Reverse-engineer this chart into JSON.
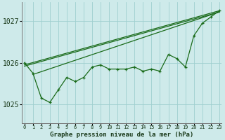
{
  "title": "Graphe pression niveau de la mer (hPa)",
  "xlabel_hours": [
    0,
    1,
    2,
    3,
    4,
    5,
    6,
    7,
    8,
    9,
    10,
    11,
    12,
    13,
    14,
    15,
    16,
    17,
    18,
    19,
    20,
    21,
    22,
    23
  ],
  "ylim": [
    1024.55,
    1027.45
  ],
  "yticks": [
    1025,
    1026,
    1027
  ],
  "bg_color": "#ceeaea",
  "grid_color": "#9fcfcf",
  "line_color": "#1a6b1a",
  "zigzag": [
    1026.0,
    1025.75,
    1025.15,
    1025.05,
    1025.35,
    1025.65,
    1025.55,
    1025.65,
    1025.9,
    1025.95,
    1025.85,
    1025.85,
    1025.85,
    1025.9,
    1025.8,
    1025.85,
    1025.8,
    1026.2,
    1026.1,
    1025.9,
    1026.65,
    1026.95,
    1027.1,
    1027.25
  ],
  "trend1_x": [
    0,
    23
  ],
  "trend1_y": [
    1025.95,
    1027.25
  ],
  "trend2_x": [
    0,
    23
  ],
  "trend2_y": [
    1025.92,
    1027.22
  ],
  "trend3_x": [
    1,
    23
  ],
  "trend3_y": [
    1025.72,
    1027.22
  ],
  "xlim": [
    -0.3,
    23.3
  ],
  "figsize": [
    3.2,
    2.0
  ],
  "dpi": 100
}
